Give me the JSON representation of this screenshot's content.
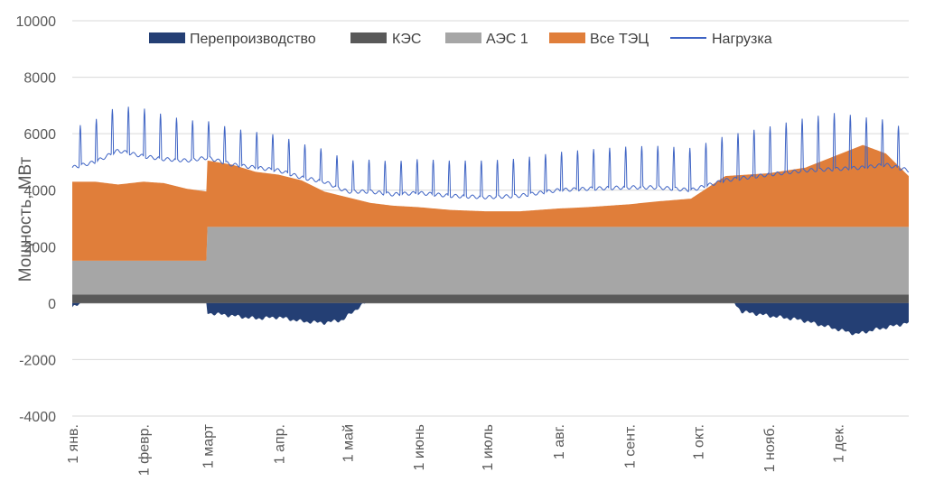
{
  "chart_data": {
    "type": "area",
    "ylabel": "Мощность, МВт",
    "ylim": [
      -4000,
      10000
    ],
    "yticks": [
      10000,
      8000,
      6000,
      4000,
      2000,
      0,
      -2000,
      -4000
    ],
    "ytick_labels": [
      "10000",
      "8000",
      "6000",
      "4000",
      "2000",
      "0",
      "-2000",
      "-4000"
    ],
    "x_range_days": [
      0,
      365
    ],
    "x_ticks": [
      {
        "day": 0,
        "label": "1 янв."
      },
      {
        "day": 31,
        "label": "1 февр."
      },
      {
        "day": 59,
        "label": "1 март"
      },
      {
        "day": 90,
        "label": "1 апр."
      },
      {
        "day": 120,
        "label": "1 май"
      },
      {
        "day": 151,
        "label": "1 июнь"
      },
      {
        "day": 181,
        "label": "1 июль"
      },
      {
        "day": 212,
        "label": "1 авг."
      },
      {
        "day": 243,
        "label": "1 сент."
      },
      {
        "day": 273,
        "label": "1 окт."
      },
      {
        "day": 304,
        "label": "1 нояб."
      },
      {
        "day": 334,
        "label": "1 дек."
      }
    ],
    "grid": "horizontal",
    "legend_position": "top",
    "legend": [
      {
        "key": "overproduction",
        "label": "Перепроизводство",
        "type": "box",
        "color": "#243f74"
      },
      {
        "key": "kes",
        "label": "КЭС",
        "type": "box",
        "color": "#595959"
      },
      {
        "key": "aes",
        "label": "АЭС 1",
        "type": "box",
        "color": "#a6a6a6"
      },
      {
        "key": "tec",
        "label": "Все ТЭЦ",
        "type": "box",
        "color": "#e07e3a"
      },
      {
        "key": "load",
        "label": "Нагрузка",
        "type": "line",
        "color": "#3f64c4"
      }
    ],
    "series": [
      {
        "key": "kes",
        "label": "КЭС",
        "kind": "stacked_area",
        "points": [
          [
            0,
            300
          ],
          [
            365,
            300
          ]
        ]
      },
      {
        "key": "aes",
        "label": "АЭС 1",
        "kind": "stacked_area",
        "points": [
          [
            0,
            1200
          ],
          [
            58.9,
            1200
          ],
          [
            59,
            2400
          ],
          [
            365,
            2400
          ]
        ]
      },
      {
        "key": "tec",
        "label": "Все ТЭЦ",
        "kind": "stacked_area",
        "points": [
          [
            0,
            2800
          ],
          [
            10,
            2800
          ],
          [
            20,
            2700
          ],
          [
            31,
            2800
          ],
          [
            40,
            2750
          ],
          [
            50,
            2550
          ],
          [
            58.9,
            2450
          ],
          [
            59,
            2350
          ],
          [
            70,
            2200
          ],
          [
            80,
            1950
          ],
          [
            90,
            1850
          ],
          [
            100,
            1650
          ],
          [
            110,
            1250
          ],
          [
            120,
            1050
          ],
          [
            130,
            850
          ],
          [
            140,
            750
          ],
          [
            151,
            700
          ],
          [
            165,
            600
          ],
          [
            181,
            550
          ],
          [
            195,
            550
          ],
          [
            212,
            650
          ],
          [
            225,
            700
          ],
          [
            243,
            800
          ],
          [
            255,
            900
          ],
          [
            270,
            1000
          ],
          [
            285,
            1800
          ],
          [
            304,
            1900
          ],
          [
            320,
            2100
          ],
          [
            334,
            2550
          ],
          [
            345,
            2900
          ],
          [
            355,
            2600
          ],
          [
            365,
            1800
          ]
        ]
      },
      {
        "key": "load",
        "label": "Нагрузка",
        "kind": "line",
        "base_points": [
          [
            0,
            4800
          ],
          [
            10,
            5000
          ],
          [
            20,
            5400
          ],
          [
            31,
            5200
          ],
          [
            40,
            5100
          ],
          [
            50,
            5050
          ],
          [
            59,
            5150
          ],
          [
            70,
            4900
          ],
          [
            80,
            4800
          ],
          [
            90,
            4700
          ],
          [
            100,
            4450
          ],
          [
            110,
            4300
          ],
          [
            120,
            3950
          ],
          [
            130,
            3950
          ],
          [
            140,
            3850
          ],
          [
            151,
            3900
          ],
          [
            165,
            3800
          ],
          [
            181,
            3750
          ],
          [
            195,
            3800
          ],
          [
            212,
            4000
          ],
          [
            225,
            4050
          ],
          [
            243,
            4100
          ],
          [
            255,
            4100
          ],
          [
            270,
            4000
          ],
          [
            285,
            4350
          ],
          [
            304,
            4550
          ],
          [
            320,
            4700
          ],
          [
            334,
            4750
          ],
          [
            345,
            4800
          ],
          [
            355,
            4900
          ],
          [
            365,
            4700
          ]
        ],
        "weekly_peak_points": [
          [
            0,
            1400
          ],
          [
            31,
            1700
          ],
          [
            59,
            1300
          ],
          [
            90,
            1250
          ],
          [
            120,
            1100
          ],
          [
            151,
            1200
          ],
          [
            181,
            1300
          ],
          [
            212,
            1350
          ],
          [
            243,
            1450
          ],
          [
            273,
            1500
          ],
          [
            304,
            1700
          ],
          [
            334,
            2000
          ],
          [
            365,
            1400
          ]
        ]
      },
      {
        "key": "overproduction",
        "label": "Перепроизводство",
        "kind": "negative_area",
        "points": [
          [
            0,
            -150
          ],
          [
            2,
            -100
          ],
          [
            4,
            0
          ],
          [
            58.9,
            0
          ],
          [
            59,
            -350
          ],
          [
            70,
            -450
          ],
          [
            80,
            -550
          ],
          [
            90,
            -500
          ],
          [
            100,
            -650
          ],
          [
            110,
            -700
          ],
          [
            118,
            -600
          ],
          [
            125,
            -150
          ],
          [
            128,
            0
          ],
          [
            289,
            0
          ],
          [
            292,
            -300
          ],
          [
            304,
            -450
          ],
          [
            318,
            -600
          ],
          [
            330,
            -850
          ],
          [
            342,
            -1100
          ],
          [
            350,
            -950
          ],
          [
            365,
            -700
          ]
        ]
      }
    ]
  }
}
